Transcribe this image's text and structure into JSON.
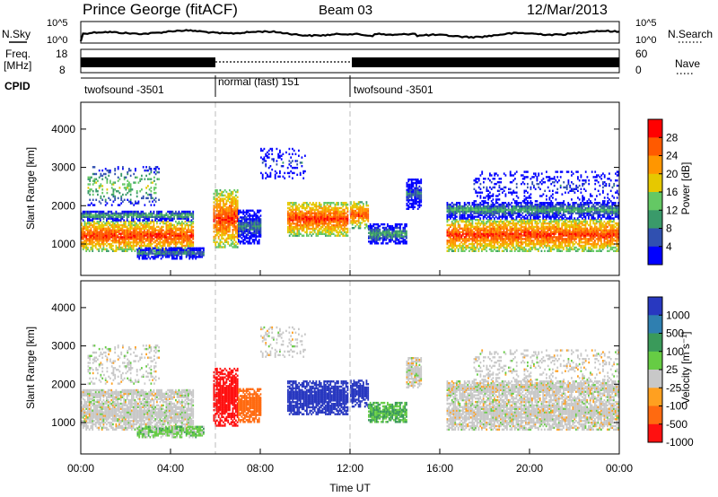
{
  "chart_data": {
    "type": "heatmap",
    "header": {
      "station": "Prince George (fitACF)",
      "beam": "Beam 03",
      "date": "12/Mar/2013"
    },
    "noise_panel": {
      "left_label": "N.Sky",
      "right_label": "N.Search",
      "left_ticks": [
        "10^5",
        "10^0"
      ],
      "right_ticks": [
        "10^5",
        "10^0"
      ]
    },
    "freq_panel": {
      "left_label_line1": "Freq.",
      "left_label_line2": "[MHz]",
      "right_label": "Nave",
      "left_ticks": [
        "18",
        "8"
      ],
      "right_ticks": [
        "60",
        "0"
      ]
    },
    "cpid": {
      "label": "CPID",
      "segments": [
        {
          "name": "twofsound -3501",
          "start_hour": 0,
          "end_hour": 6
        },
        {
          "name": "normal (fast) 151",
          "start_hour": 6,
          "end_hour": 12
        },
        {
          "name": "twofsound -3501",
          "start_hour": 12,
          "end_hour": 24
        }
      ]
    },
    "x_axis": {
      "label": "Time UT",
      "ticks": [
        "00:00",
        "04:00",
        "08:00",
        "12:00",
        "16:00",
        "20:00",
        "00:00"
      ],
      "range_hours": [
        0,
        24
      ]
    },
    "y_axis": {
      "label": "Slant Range [km]",
      "ticks": [
        "1000",
        "2000",
        "3000",
        "4000"
      ],
      "range_km": [
        180,
        4700
      ]
    },
    "power_panel": {
      "colorbar_label": "Power [dB]",
      "colorbar_ticks": [
        "28",
        "24",
        "20",
        "16",
        "12",
        "8",
        "4"
      ],
      "colors": [
        "#ff0000",
        "#ff5a00",
        "#ff9600",
        "#e6c800",
        "#64c864",
        "#3a9a6a",
        "#3050b0",
        "#0000ff"
      ],
      "range_db": [
        0,
        32
      ]
    },
    "velocity_panel": {
      "colorbar_label": "Velocity [m s⁻¹]",
      "colorbar_ticks": [
        "1000",
        "500",
        "100",
        "25",
        "-25",
        "-100",
        "-500",
        "-1000"
      ],
      "colors": [
        "#2838c0",
        "#2f7fb0",
        "#3a9a5a",
        "#66cc44",
        "#c8c8c8",
        "#ffa020",
        "#ff6a10",
        "#ff1010"
      ]
    },
    "regions": [
      {
        "t0": 0.0,
        "t1": 5.0,
        "r0": 800,
        "r1": 1600,
        "power": 28,
        "vel": 0
      },
      {
        "t0": 0.0,
        "t1": 5.0,
        "r0": 1600,
        "r1": 1850,
        "power": 13,
        "vel": 0
      },
      {
        "t0": 0.3,
        "t1": 3.5,
        "r0": 2000,
        "r1": 3000,
        "power": 16,
        "vel": 0,
        "sparse": true
      },
      {
        "t0": 2.5,
        "t1": 5.5,
        "r0": 600,
        "r1": 900,
        "power": 10,
        "vel": 40
      },
      {
        "t0": 5.9,
        "t1": 7.0,
        "r0": 900,
        "r1": 2400,
        "power": 28,
        "vel": -900
      },
      {
        "t0": 7.0,
        "t1": 8.0,
        "r0": 1000,
        "r1": 1900,
        "power": 9,
        "vel": -300
      },
      {
        "t0": 8.0,
        "t1": 10.0,
        "r0": 2700,
        "r1": 3500,
        "power": 6,
        "vel": 0,
        "sparse": true
      },
      {
        "t0": 9.2,
        "t1": 11.9,
        "r0": 1200,
        "r1": 2100,
        "power": 28,
        "vel": 800
      },
      {
        "t0": 12.0,
        "t1": 12.8,
        "r0": 1400,
        "r1": 2100,
        "power": 27,
        "vel": 900
      },
      {
        "t0": 12.8,
        "t1": 14.5,
        "r0": 1000,
        "r1": 1500,
        "power": 12,
        "vel": 60
      },
      {
        "t0": 14.5,
        "t1": 15.2,
        "r0": 1900,
        "r1": 2700,
        "power": 8,
        "vel": 0
      },
      {
        "t0": 16.3,
        "t1": 24.0,
        "r0": 800,
        "r1": 1650,
        "power": 28,
        "vel": 0
      },
      {
        "t0": 16.3,
        "t1": 24.0,
        "r0": 1650,
        "r1": 2100,
        "power": 12,
        "vel": 0
      },
      {
        "t0": 17.5,
        "t1": 24.0,
        "r0": 2100,
        "r1": 2900,
        "power": 6,
        "vel": 0,
        "sparse": true
      }
    ]
  }
}
